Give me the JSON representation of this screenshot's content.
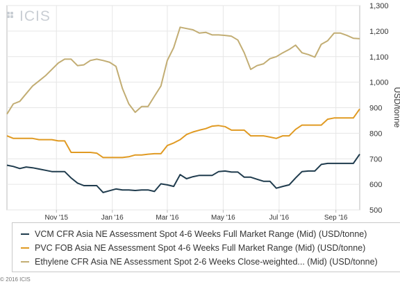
{
  "logo": {
    "text": "ICIS"
  },
  "copyright": "© 2016 ICIS",
  "colors": {
    "vcm": "#1f3b4d",
    "pvc": "#e09a22",
    "ethylene": "#c2ad73",
    "grid": "#e6e6e6",
    "axis": "#bbbbbb"
  },
  "chart_data": {
    "type": "line",
    "ylabel": "USD/tonne",
    "ylim": [
      500,
      1300
    ],
    "yticks": [
      "500",
      "600",
      "700",
      "800",
      "900",
      "1,000",
      "1,100",
      "1,200",
      "1,300"
    ],
    "x_start": "2015-09-08",
    "x_end": "2016-09-27",
    "xticks": [
      {
        "label": "Nov '15",
        "date": "2015-11-01"
      },
      {
        "label": "Jan '16",
        "date": "2016-01-01"
      },
      {
        "label": "Mar '16",
        "date": "2016-03-01"
      },
      {
        "label": "May '16",
        "date": "2016-05-01"
      },
      {
        "label": "Jul '16",
        "date": "2016-07-01"
      },
      {
        "label": "Sep '16",
        "date": "2016-09-01"
      }
    ],
    "grid": true,
    "legend_position": "bottom",
    "series": [
      {
        "key": "vcm",
        "name": "VCM CFR Asia NE Assessment Spot 4-6 Weeks Full Market Range (Mid) (USD/tonne)",
        "points": [
          [
            "2015-09-08",
            675
          ],
          [
            "2015-09-15",
            670
          ],
          [
            "2015-09-22",
            662
          ],
          [
            "2015-09-29",
            668
          ],
          [
            "2015-10-06",
            665
          ],
          [
            "2015-10-13",
            660
          ],
          [
            "2015-10-20",
            655
          ],
          [
            "2015-10-27",
            650
          ],
          [
            "2015-11-03",
            650
          ],
          [
            "2015-11-10",
            650
          ],
          [
            "2015-11-17",
            625
          ],
          [
            "2015-11-24",
            605
          ],
          [
            "2015-12-01",
            595
          ],
          [
            "2015-12-08",
            595
          ],
          [
            "2015-12-15",
            595
          ],
          [
            "2015-12-22",
            568
          ],
          [
            "2015-12-29",
            575
          ],
          [
            "2016-01-05",
            582
          ],
          [
            "2016-01-12",
            578
          ],
          [
            "2016-01-19",
            578
          ],
          [
            "2016-01-26",
            576
          ],
          [
            "2016-02-02",
            578
          ],
          [
            "2016-02-09",
            578
          ],
          [
            "2016-02-16",
            572
          ],
          [
            "2016-02-23",
            602
          ],
          [
            "2016-03-01",
            598
          ],
          [
            "2016-03-08",
            592
          ],
          [
            "2016-03-15",
            638
          ],
          [
            "2016-03-22",
            622
          ],
          [
            "2016-03-29",
            630
          ],
          [
            "2016-04-05",
            635
          ],
          [
            "2016-04-12",
            635
          ],
          [
            "2016-04-19",
            635
          ],
          [
            "2016-04-26",
            650
          ],
          [
            "2016-05-03",
            652
          ],
          [
            "2016-05-10",
            648
          ],
          [
            "2016-05-17",
            648
          ],
          [
            "2016-05-24",
            628
          ],
          [
            "2016-05-31",
            628
          ],
          [
            "2016-06-07",
            620
          ],
          [
            "2016-06-14",
            612
          ],
          [
            "2016-06-21",
            612
          ],
          [
            "2016-06-28",
            585
          ],
          [
            "2016-07-05",
            592
          ],
          [
            "2016-07-12",
            598
          ],
          [
            "2016-07-19",
            625
          ],
          [
            "2016-07-26",
            650
          ],
          [
            "2016-08-02",
            652
          ],
          [
            "2016-08-09",
            652
          ],
          [
            "2016-08-16",
            678
          ],
          [
            "2016-08-23",
            682
          ],
          [
            "2016-08-30",
            682
          ],
          [
            "2016-09-06",
            682
          ],
          [
            "2016-09-13",
            682
          ],
          [
            "2016-09-20",
            682
          ],
          [
            "2016-09-27",
            718
          ]
        ]
      },
      {
        "key": "pvc",
        "name": "PVC FOB Asia NE Assessment Spot 4-6 Weeks Full Market Range (Mid) (USD/tonne)",
        "points": [
          [
            "2015-09-08",
            790
          ],
          [
            "2015-09-15",
            780
          ],
          [
            "2015-09-22",
            780
          ],
          [
            "2015-09-29",
            780
          ],
          [
            "2015-10-06",
            780
          ],
          [
            "2015-10-13",
            775
          ],
          [
            "2015-10-20",
            775
          ],
          [
            "2015-10-27",
            775
          ],
          [
            "2015-11-03",
            770
          ],
          [
            "2015-11-10",
            770
          ],
          [
            "2015-11-17",
            725
          ],
          [
            "2015-11-24",
            725
          ],
          [
            "2015-12-01",
            725
          ],
          [
            "2015-12-08",
            725
          ],
          [
            "2015-12-15",
            722
          ],
          [
            "2015-12-22",
            705
          ],
          [
            "2015-12-29",
            705
          ],
          [
            "2016-01-05",
            705
          ],
          [
            "2016-01-12",
            705
          ],
          [
            "2016-01-19",
            708
          ],
          [
            "2016-01-26",
            715
          ],
          [
            "2016-02-02",
            715
          ],
          [
            "2016-02-09",
            718
          ],
          [
            "2016-02-16",
            720
          ],
          [
            "2016-02-23",
            720
          ],
          [
            "2016-03-01",
            752
          ],
          [
            "2016-03-08",
            762
          ],
          [
            "2016-03-15",
            775
          ],
          [
            "2016-03-22",
            795
          ],
          [
            "2016-03-29",
            805
          ],
          [
            "2016-04-05",
            812
          ],
          [
            "2016-04-12",
            818
          ],
          [
            "2016-04-19",
            828
          ],
          [
            "2016-04-26",
            830
          ],
          [
            "2016-05-03",
            826
          ],
          [
            "2016-05-10",
            812
          ],
          [
            "2016-05-17",
            812
          ],
          [
            "2016-05-24",
            812
          ],
          [
            "2016-05-31",
            790
          ],
          [
            "2016-06-07",
            790
          ],
          [
            "2016-06-14",
            790
          ],
          [
            "2016-06-21",
            785
          ],
          [
            "2016-06-28",
            780
          ],
          [
            "2016-07-05",
            790
          ],
          [
            "2016-07-12",
            790
          ],
          [
            "2016-07-19",
            815
          ],
          [
            "2016-07-26",
            832
          ],
          [
            "2016-08-02",
            832
          ],
          [
            "2016-08-09",
            832
          ],
          [
            "2016-08-16",
            832
          ],
          [
            "2016-08-23",
            855
          ],
          [
            "2016-08-30",
            860
          ],
          [
            "2016-09-06",
            860
          ],
          [
            "2016-09-13",
            860
          ],
          [
            "2016-09-20",
            860
          ],
          [
            "2016-09-27",
            895
          ]
        ]
      },
      {
        "key": "ethylene",
        "name": "Ethylene CFR Asia NE Assessment Spot 2-6 Weeks Close-weighted... (Mid) (USD/tonne)",
        "points": [
          [
            "2015-09-08",
            875
          ],
          [
            "2015-09-15",
            915
          ],
          [
            "2015-09-22",
            925
          ],
          [
            "2015-09-29",
            955
          ],
          [
            "2015-10-06",
            985
          ],
          [
            "2015-10-13",
            1005
          ],
          [
            "2015-10-20",
            1025
          ],
          [
            "2015-10-27",
            1050
          ],
          [
            "2015-11-03",
            1075
          ],
          [
            "2015-11-10",
            1090
          ],
          [
            "2015-11-17",
            1090
          ],
          [
            "2015-11-24",
            1065
          ],
          [
            "2015-12-01",
            1068
          ],
          [
            "2015-12-08",
            1085
          ],
          [
            "2015-12-15",
            1090
          ],
          [
            "2015-12-22",
            1085
          ],
          [
            "2015-12-29",
            1078
          ],
          [
            "2016-01-05",
            1062
          ],
          [
            "2016-01-12",
            975
          ],
          [
            "2016-01-19",
            915
          ],
          [
            "2016-01-26",
            882
          ],
          [
            "2016-02-02",
            905
          ],
          [
            "2016-02-09",
            905
          ],
          [
            "2016-02-16",
            945
          ],
          [
            "2016-02-23",
            985
          ],
          [
            "2016-03-01",
            1085
          ],
          [
            "2016-03-08",
            1135
          ],
          [
            "2016-03-15",
            1215
          ],
          [
            "2016-03-22",
            1210
          ],
          [
            "2016-03-29",
            1205
          ],
          [
            "2016-04-05",
            1192
          ],
          [
            "2016-04-12",
            1195
          ],
          [
            "2016-04-19",
            1185
          ],
          [
            "2016-04-26",
            1185
          ],
          [
            "2016-05-03",
            1183
          ],
          [
            "2016-05-10",
            1180
          ],
          [
            "2016-05-17",
            1165
          ],
          [
            "2016-05-24",
            1115
          ],
          [
            "2016-05-31",
            1050
          ],
          [
            "2016-06-07",
            1065
          ],
          [
            "2016-06-14",
            1072
          ],
          [
            "2016-06-21",
            1092
          ],
          [
            "2016-06-28",
            1100
          ],
          [
            "2016-07-05",
            1115
          ],
          [
            "2016-07-12",
            1128
          ],
          [
            "2016-07-19",
            1145
          ],
          [
            "2016-07-26",
            1115
          ],
          [
            "2016-08-02",
            1108
          ],
          [
            "2016-08-09",
            1098
          ],
          [
            "2016-08-16",
            1148
          ],
          [
            "2016-08-23",
            1162
          ],
          [
            "2016-08-30",
            1192
          ],
          [
            "2016-09-06",
            1192
          ],
          [
            "2016-09-13",
            1183
          ],
          [
            "2016-09-20",
            1172
          ],
          [
            "2016-09-27",
            1170
          ]
        ]
      }
    ]
  }
}
